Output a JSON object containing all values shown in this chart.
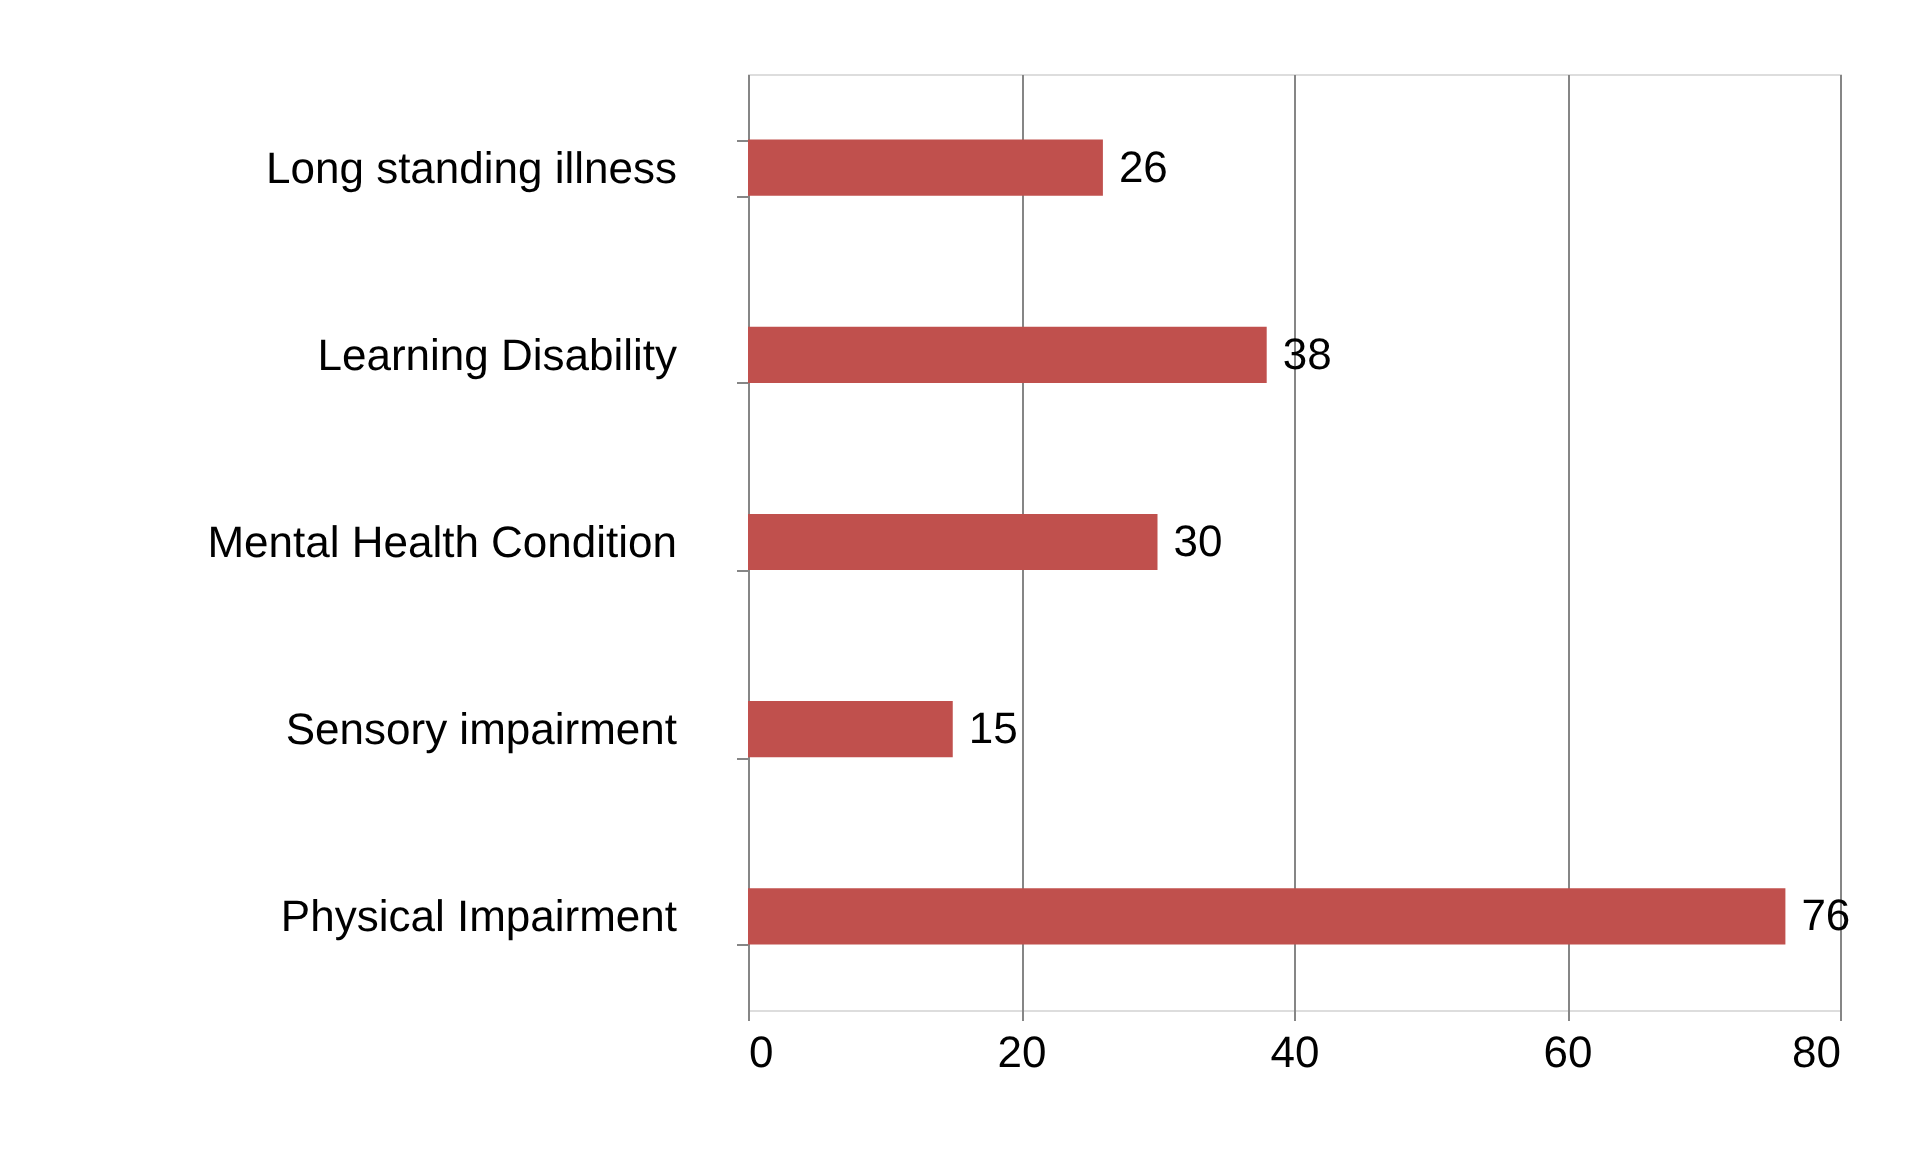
{
  "chart_data": {
    "type": "bar",
    "orientation": "horizontal",
    "categories": [
      "Long standing illness",
      "Learning Disability",
      "Mental Health Condition",
      "Sensory impairment",
      "Physical Impairment"
    ],
    "values": [
      26,
      38,
      30,
      15,
      76
    ],
    "color": "#c0504d",
    "xlim": [
      0,
      80
    ],
    "xticks": [
      0,
      20,
      40,
      60,
      80
    ],
    "grid": "x",
    "data_labels": true
  }
}
